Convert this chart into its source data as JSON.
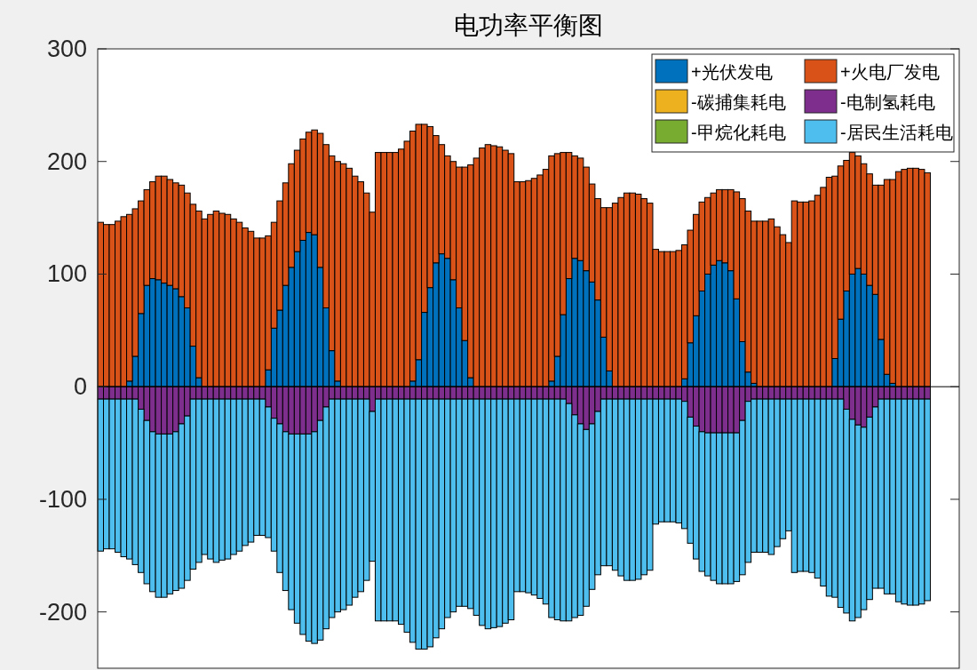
{
  "chart_data": {
    "type": "bar",
    "title": "电功率平衡图",
    "stacked": true,
    "legend": "top right",
    "ylim": [
      -250,
      300
    ],
    "yticks": [
      -200,
      -100,
      0,
      100,
      200,
      300
    ],
    "categories": [
      null,
      null,
      null,
      null,
      null,
      null,
      null,
      null,
      null,
      null,
      null,
      null,
      null,
      null,
      null,
      null,
      null,
      null,
      null,
      null,
      null,
      null,
      null,
      null,
      null,
      null,
      null,
      null,
      null,
      null,
      null,
      null,
      null,
      null,
      null,
      null,
      null,
      null,
      null,
      null,
      null,
      null,
      null,
      null,
      null,
      null,
      null,
      null,
      null,
      null,
      null,
      null,
      null,
      null,
      null,
      null,
      null,
      null,
      null,
      null,
      null,
      null,
      null,
      null,
      null,
      null,
      null,
      null,
      null,
      null,
      null,
      null,
      null,
      null,
      null,
      null,
      null,
      null,
      null,
      null,
      null,
      null,
      null,
      null,
      null,
      null,
      null,
      null,
      null,
      null,
      null,
      null,
      null,
      null,
      null,
      null,
      null,
      null,
      null,
      null,
      null,
      null,
      null,
      null,
      null,
      null,
      null,
      null,
      null,
      null,
      null,
      null,
      null,
      null,
      null,
      null,
      null,
      null,
      null,
      null,
      null,
      null,
      null,
      null,
      null,
      null,
      null,
      null,
      null,
      null,
      null,
      null,
      null,
      null,
      null,
      null,
      null,
      null,
      null,
      null,
      null,
      null,
      null,
      null
    ],
    "series": [
      {
        "name": "+光伏发电",
        "color": "#0072bd",
        "values": [
          0,
          0,
          0,
          0,
          0,
          5,
          27,
          65,
          90,
          96,
          95,
          92,
          90,
          87,
          80,
          70,
          36,
          8,
          0,
          0,
          0,
          0,
          0,
          0,
          0,
          0,
          0,
          0,
          0,
          15,
          52,
          68,
          90,
          106,
          120,
          130,
          137,
          135,
          106,
          70,
          32,
          5,
          0,
          0,
          0,
          0,
          0,
          0,
          0,
          0,
          0,
          0,
          0,
          0,
          5,
          24,
          66,
          88,
          110,
          118,
          114,
          95,
          70,
          41,
          8,
          0,
          0,
          0,
          0,
          0,
          0,
          0,
          0,
          0,
          0,
          0,
          0,
          0,
          5,
          27,
          64,
          96,
          114,
          112,
          103,
          93,
          77,
          44,
          14,
          0,
          0,
          0,
          0,
          0,
          0,
          0,
          0,
          0,
          0,
          0,
          0,
          7,
          39,
          63,
          85,
          100,
          108,
          112,
          110,
          103,
          78,
          40,
          13,
          3,
          0,
          0,
          0,
          0,
          0,
          0,
          0,
          0,
          0,
          0,
          0,
          0,
          0,
          25,
          60,
          85,
          100,
          105,
          100,
          90,
          82,
          42,
          11,
          3,
          0,
          0,
          0,
          0,
          0,
          0
        ]
      },
      {
        "name": "+火电厂发电",
        "color": "#d95319",
        "values": [
          146,
          144,
          144,
          147,
          151,
          148,
          131,
          100,
          85,
          86,
          92,
          95,
          94,
          94,
          99,
          102,
          126,
          148,
          149,
          153,
          156,
          154,
          153,
          149,
          146,
          141,
          138,
          132,
          132,
          119,
          94,
          97,
          91,
          92,
          90,
          90,
          89,
          93,
          119,
          145,
          173,
          195,
          198,
          194,
          187,
          182,
          172,
          155,
          208,
          208,
          208,
          208,
          211,
          218,
          222,
          209,
          167,
          143,
          113,
          97,
          91,
          105,
          125,
          154,
          189,
          203,
          212,
          215,
          214,
          213,
          210,
          207,
          182,
          182,
          183,
          185,
          188,
          193,
          200,
          180,
          144,
          112,
          91,
          91,
          92,
          87,
          90,
          115,
          145,
          163,
          168,
          172,
          172,
          171,
          167,
          163,
          122,
          120,
          120,
          120,
          121,
          119,
          100,
          90,
          79,
          68,
          64,
          63,
          65,
          72,
          95,
          127,
          143,
          144,
          147,
          147,
          149,
          142,
          135,
          128,
          165,
          164,
          164,
          165,
          170,
          177,
          186,
          162,
          136,
          116,
          108,
          100,
          98,
          99,
          97,
          137,
          173,
          181,
          191,
          193,
          194,
          194,
          193,
          190
        ]
      },
      {
        "name": "-碳捕集耗电",
        "color": "#edb120",
        "values": [
          0,
          0,
          0,
          0,
          0,
          0,
          0,
          0,
          0,
          0,
          0,
          0,
          0,
          0,
          0,
          0,
          0,
          0,
          0,
          0,
          0,
          0,
          0,
          0,
          0,
          0,
          0,
          0,
          0,
          0,
          0,
          0,
          0,
          0,
          0,
          0,
          0,
          0,
          0,
          0,
          0,
          0,
          0,
          0,
          0,
          0,
          0,
          0,
          0,
          0,
          0,
          0,
          0,
          0,
          0,
          0,
          0,
          0,
          0,
          0,
          0,
          0,
          0,
          0,
          0,
          0,
          0,
          0,
          0,
          0,
          0,
          0,
          0,
          0,
          0,
          0,
          0,
          0,
          0,
          0,
          0,
          0,
          0,
          0,
          0,
          0,
          0,
          0,
          0,
          0,
          0,
          0,
          0,
          0,
          0,
          0,
          0,
          0,
          0,
          0,
          0,
          0,
          0,
          0,
          0,
          0,
          0,
          0,
          0,
          0,
          0,
          0,
          0,
          0,
          0,
          0,
          0,
          0,
          0,
          0,
          0,
          0,
          0,
          0,
          0,
          0,
          0,
          0,
          0,
          0,
          0,
          0,
          0,
          0,
          0,
          0,
          0,
          0,
          0,
          0,
          0,
          0,
          0,
          0
        ]
      },
      {
        "name": "-电制氢耗电",
        "color": "#7e2f8e",
        "values": [
          -11,
          -11,
          -11,
          -11,
          -11,
          -11,
          -11,
          -20,
          -30,
          -40,
          -42,
          -42,
          -42,
          -40,
          -33,
          -26,
          -11,
          -11,
          -11,
          -11,
          -11,
          -11,
          -11,
          -11,
          -11,
          -11,
          -11,
          -11,
          -11,
          -18,
          -28,
          -33,
          -40,
          -42,
          -42,
          -42,
          -42,
          -40,
          -30,
          -18,
          -11,
          -11,
          -11,
          -11,
          -11,
          -11,
          -11,
          -22,
          -11,
          -11,
          -11,
          -11,
          -11,
          -11,
          -11,
          -11,
          -11,
          -11,
          -11,
          -11,
          -11,
          -11,
          -11,
          -11,
          -11,
          -11,
          -11,
          -11,
          -11,
          -11,
          -11,
          -11,
          -11,
          -11,
          -11,
          -11,
          -11,
          -11,
          -11,
          -11,
          -11,
          -15,
          -25,
          -33,
          -38,
          -33,
          -22,
          -11,
          -11,
          -11,
          -11,
          -11,
          -11,
          -11,
          -11,
          -11,
          -11,
          -11,
          -11,
          -11,
          -11,
          -13,
          -27,
          -35,
          -40,
          -41,
          -41,
          -41,
          -41,
          -41,
          -41,
          -30,
          -13,
          -11,
          -11,
          -11,
          -11,
          -11,
          -11,
          -11,
          -11,
          -11,
          -11,
          -11,
          -11,
          -11,
          -11,
          -11,
          -11,
          -20,
          -29,
          -34,
          -36,
          -27,
          -18,
          -11,
          -11,
          -11,
          -11,
          -11,
          -11,
          -11,
          -11,
          -11
        ]
      },
      {
        "name": "-甲烷化耗电",
        "color": "#77ac30",
        "values": [
          0,
          0,
          0,
          0,
          0,
          0,
          0,
          0,
          0,
          0,
          0,
          0,
          0,
          0,
          0,
          0,
          0,
          0,
          0,
          0,
          0,
          0,
          0,
          0,
          0,
          0,
          0,
          0,
          0,
          0,
          0,
          0,
          0,
          0,
          0,
          0,
          0,
          0,
          0,
          0,
          0,
          0,
          0,
          0,
          0,
          0,
          0,
          0,
          0,
          0,
          0,
          0,
          0,
          0,
          0,
          0,
          0,
          0,
          0,
          0,
          0,
          0,
          0,
          0,
          0,
          0,
          0,
          0,
          0,
          0,
          0,
          0,
          0,
          0,
          0,
          0,
          0,
          0,
          0,
          0,
          0,
          0,
          0,
          0,
          0,
          0,
          0,
          0,
          0,
          0,
          0,
          0,
          0,
          0,
          0,
          0,
          0,
          0,
          0,
          0,
          0,
          0,
          0,
          0,
          0,
          0,
          0,
          0,
          0,
          0,
          0,
          0,
          0,
          0,
          0,
          0,
          0,
          0,
          0,
          0,
          0,
          0,
          0,
          0,
          0,
          0,
          0,
          0,
          0,
          0,
          0,
          0,
          0,
          0,
          0,
          0,
          0,
          0,
          0,
          0,
          0,
          0,
          0,
          0
        ]
      },
      {
        "name": "-居民生活耗电",
        "color": "#4dbeee",
        "values": [
          -135,
          -133,
          -133,
          -136,
          -140,
          -142,
          -147,
          -145,
          -145,
          -142,
          -145,
          -145,
          -142,
          -141,
          -146,
          -146,
          -151,
          -145,
          -138,
          -142,
          -145,
          -143,
          -142,
          -138,
          -135,
          -130,
          -127,
          -121,
          -121,
          -116,
          -118,
          -132,
          -141,
          -156,
          -168,
          -178,
          -184,
          -188,
          -195,
          -197,
          -194,
          -189,
          -187,
          -183,
          -176,
          -171,
          -161,
          -133,
          -197,
          -197,
          -197,
          -197,
          -200,
          -207,
          -216,
          -222,
          -222,
          -220,
          -212,
          -204,
          -194,
          -189,
          -184,
          -184,
          -186,
          -192,
          -201,
          -204,
          -203,
          -202,
          -199,
          -196,
          -171,
          -171,
          -172,
          -174,
          -177,
          -182,
          -194,
          -196,
          -197,
          -193,
          -180,
          -170,
          -157,
          -147,
          -145,
          -148,
          -148,
          -152,
          -157,
          -161,
          -161,
          -160,
          -156,
          -152,
          -111,
          -109,
          -109,
          -109,
          -110,
          -113,
          -112,
          -118,
          -124,
          -127,
          -131,
          -134,
          -134,
          -134,
          -132,
          -137,
          -143,
          -136,
          -136,
          -136,
          -138,
          -131,
          -124,
          -117,
          -154,
          -153,
          -153,
          -154,
          -159,
          -166,
          -175,
          -176,
          -185,
          -181,
          -179,
          -171,
          -162,
          -162,
          -161,
          -168,
          -173,
          -173,
          -180,
          -182,
          -183,
          -183,
          -182,
          -179
        ]
      }
    ]
  }
}
